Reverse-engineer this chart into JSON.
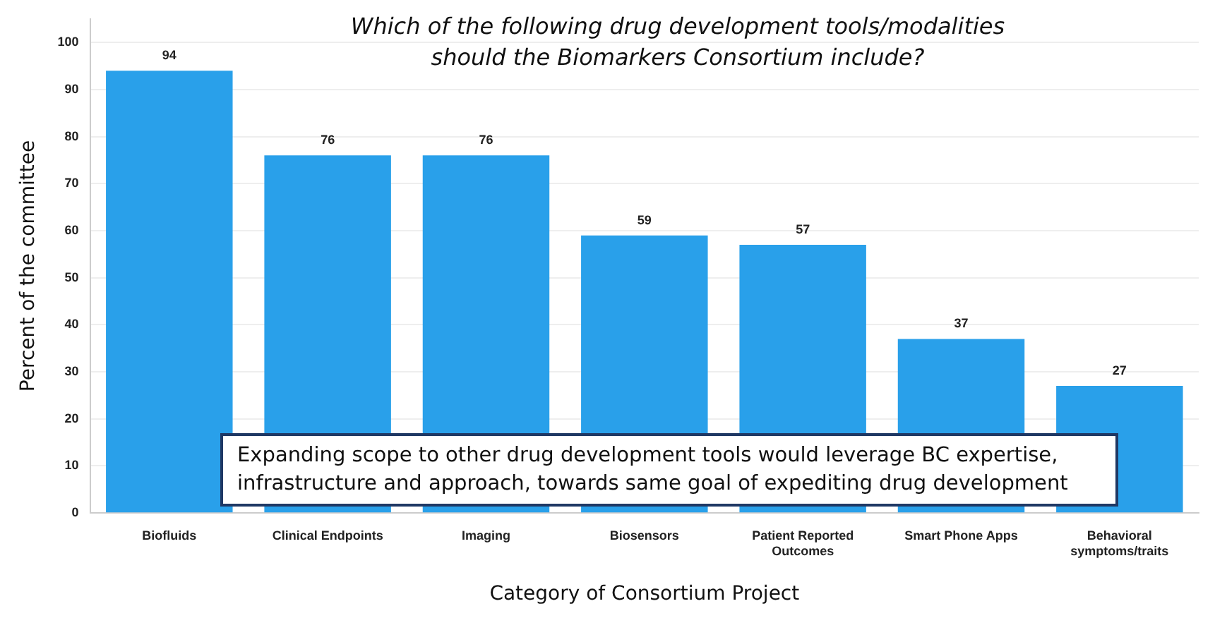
{
  "chart_data": {
    "type": "bar",
    "title": "Which of the following drug development tools/modalities should the Biomarkers Consortium include?",
    "xlabel": "Category of Consortium Project",
    "ylabel": "Percent of the committee",
    "categories": [
      "Biofluids",
      "Clinical Endpoints",
      "Imaging",
      "Biosensors",
      "Patient Reported Outcomes",
      "Smart Phone Apps",
      "Behavioral symptoms/traits"
    ],
    "values": [
      94,
      76,
      76,
      59,
      57,
      37,
      27
    ],
    "color": "#29a0ea",
    "ylim": [
      0,
      105
    ],
    "yticks": [
      0,
      10,
      20,
      30,
      40,
      50,
      60,
      70,
      80,
      90,
      100
    ],
    "grid": "y",
    "data_labels": true,
    "annotations": [
      "Expanding scope to other drug development tools would leverage BC expertise, infrastructure and approach, towards same goal of expediting drug development"
    ]
  }
}
